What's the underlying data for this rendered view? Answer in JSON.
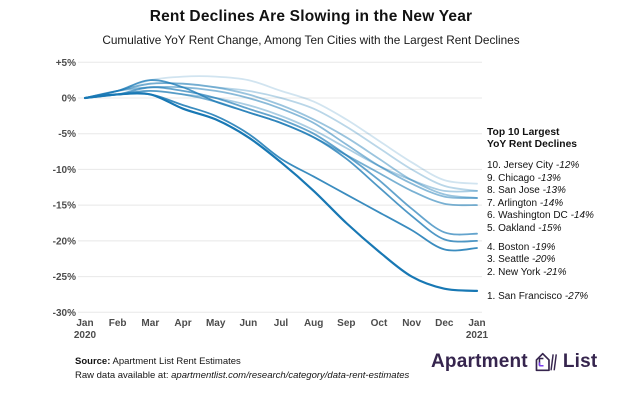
{
  "chart_data": {
    "type": "line",
    "title": "Rent Declines Are Slowing in the New Year",
    "subtitle": "Cumulative YoY Rent Change, Among Ten Cities with the Largest Rent Declines",
    "x_labels": [
      "Jan",
      "Feb",
      "Mar",
      "Apr",
      "May",
      "Jun",
      "Jul",
      "Aug",
      "Sep",
      "Oct",
      "Nov",
      "Dec",
      "Jan"
    ],
    "x_sublabel_first": "2020",
    "x_sublabel_last": "2021",
    "ylim": [
      -30,
      5
    ],
    "grid": true,
    "line_color": "#1878b4",
    "y_ticks": [
      {
        "value": 5,
        "label": "+5%"
      },
      {
        "value": 0,
        "label": "0%"
      },
      {
        "value": -5,
        "label": "-5%"
      },
      {
        "value": -10,
        "label": "-10%"
      },
      {
        "value": -15,
        "label": "-15%"
      },
      {
        "value": -20,
        "label": "-20%"
      },
      {
        "value": -25,
        "label": "-25%"
      },
      {
        "value": -30,
        "label": "-30%"
      }
    ],
    "series": [
      {
        "rank": 1,
        "name": "San Francisco",
        "end_value": -27,
        "opacity": 1.0,
        "values": [
          0,
          0.5,
          0.5,
          -1.5,
          -3,
          -5.5,
          -9,
          -13,
          -17.5,
          -21.5,
          -25,
          -26.7,
          -27
        ]
      },
      {
        "rank": 2,
        "name": "New York",
        "end_value": -21,
        "opacity": 0.85,
        "values": [
          0,
          0.5,
          0.5,
          -1,
          -2.5,
          -5,
          -8.5,
          -11,
          -13.5,
          -16,
          -18.5,
          -21.2,
          -21
        ]
      },
      {
        "rank": 3,
        "name": "Seattle",
        "end_value": -20,
        "opacity": 0.76,
        "values": [
          0,
          1,
          2.5,
          1.5,
          -0.5,
          -2,
          -3.5,
          -5.5,
          -8.5,
          -12.5,
          -16.5,
          -19.8,
          -20
        ]
      },
      {
        "rank": 4,
        "name": "Boston",
        "end_value": -19,
        "opacity": 0.67,
        "values": [
          0,
          0.5,
          1.5,
          1,
          0,
          -1.5,
          -3,
          -5,
          -8,
          -11.5,
          -15.5,
          -18.8,
          -19
        ]
      },
      {
        "rank": 5,
        "name": "Oakland",
        "end_value": -15,
        "opacity": 0.58,
        "values": [
          0,
          0.5,
          1,
          0.5,
          -0.5,
          -2,
          -3.5,
          -5.5,
          -8,
          -10.5,
          -13,
          -14.8,
          -15
        ]
      },
      {
        "rank": 6,
        "name": "Washington DC",
        "end_value": -14,
        "opacity": 0.51,
        "values": [
          0,
          1,
          1.5,
          1.5,
          1,
          0,
          -1.5,
          -3.5,
          -6.5,
          -9.5,
          -12,
          -13.8,
          -14
        ]
      },
      {
        "rank": 7,
        "name": "Arlington",
        "end_value": -14,
        "opacity": 0.44,
        "values": [
          0,
          1,
          2,
          2,
          1.5,
          0.5,
          -1,
          -3,
          -5.5,
          -8.5,
          -11.5,
          -13.5,
          -14
        ]
      },
      {
        "rank": 8,
        "name": "San Jose",
        "end_value": -13,
        "opacity": 0.37,
        "values": [
          0,
          0.5,
          1,
          0.5,
          0,
          -1,
          -2.5,
          -4.5,
          -7,
          -9.5,
          -11.5,
          -13,
          -13
        ]
      },
      {
        "rank": 9,
        "name": "Chicago",
        "end_value": -13,
        "opacity": 0.3,
        "values": [
          0,
          1,
          2,
          2,
          1.5,
          1,
          0,
          -1.5,
          -4,
          -7,
          -10,
          -12.3,
          -13
        ]
      },
      {
        "rank": 10,
        "name": "Jersey City",
        "end_value": -12,
        "opacity": 0.2,
        "values": [
          0,
          1,
          2.5,
          3,
          3,
          2.5,
          1,
          -0.5,
          -3,
          -6,
          -9,
          -11.5,
          -12
        ]
      }
    ],
    "legend_position": "right"
  },
  "legend": {
    "heading_line1": "Top 10 Largest",
    "heading_line2": "YoY Rent Declines",
    "groups": [
      [
        {
          "rank": "10.",
          "city": "Jersey City",
          "pct": "-12%"
        },
        {
          "rank": "9.",
          "city": "Chicago",
          "pct": "-13%"
        },
        {
          "rank": "8.",
          "city": "San Jose",
          "pct": "-13%"
        },
        {
          "rank": "7.",
          "city": "Arlington",
          "pct": "-14%"
        },
        {
          "rank": "6.",
          "city": "Washington DC",
          "pct": "-14%"
        },
        {
          "rank": "5.",
          "city": "Oakland",
          "pct": "-15%"
        }
      ],
      [
        {
          "rank": "4.",
          "city": "Boston",
          "pct": "-19%"
        },
        {
          "rank": "3.",
          "city": "Seattle",
          "pct": "-20%"
        },
        {
          "rank": "2.",
          "city": "New York",
          "pct": "-21%"
        }
      ],
      [
        {
          "rank": "1.",
          "city": "San Francisco",
          "pct": "-27%"
        }
      ]
    ]
  },
  "footer": {
    "source_label": "Source:",
    "source_text": " Apartment List Rent Estimates",
    "rawdata_prefix": "Raw data available at: ",
    "rawdata_url": "apartmentlist.com/research/category/data-rent-estimates"
  },
  "logo": {
    "word1": "Apartment",
    "word2": "List",
    "color": "#36254e",
    "accent": "#7e3ff2"
  }
}
